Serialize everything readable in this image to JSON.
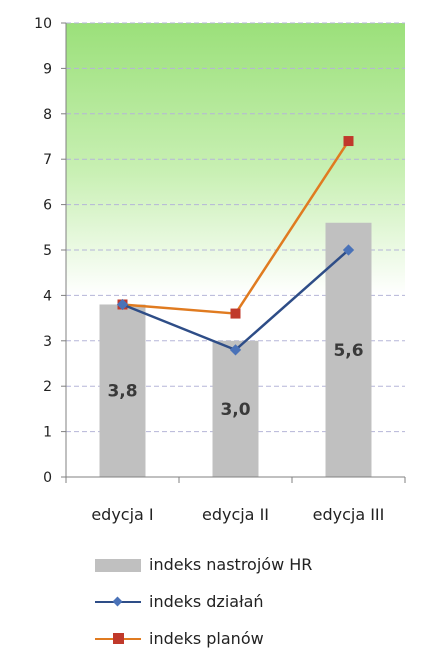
{
  "chart_data": {
    "type": "bar",
    "categories": [
      "edycja I",
      "edycja II",
      "edycja III"
    ],
    "ylim": [
      0,
      10
    ],
    "yticks": [
      0,
      1,
      2,
      3,
      4,
      5,
      6,
      7,
      8,
      9,
      10
    ],
    "grid": true,
    "legend_position": "bottom",
    "series": [
      {
        "name": "indeks nastrojów  HR",
        "kind": "bar",
        "color": "#c0c0c0",
        "values": [
          3.8,
          3.0,
          5.6
        ],
        "labels": [
          "3,8",
          "3,0",
          "5,6"
        ]
      },
      {
        "name": "indeks działań",
        "kind": "line",
        "marker": "diamond",
        "color": "#2e4d87",
        "values": [
          3.8,
          2.8,
          5.0
        ]
      },
      {
        "name": "indeks planów",
        "kind": "line",
        "marker": "square",
        "color": "#e07b20",
        "marker_color": "#c0392b",
        "values": [
          3.8,
          3.6,
          7.4
        ]
      }
    ],
    "background_band": {
      "from": 4,
      "to": 10,
      "color": "#9be07a"
    }
  }
}
